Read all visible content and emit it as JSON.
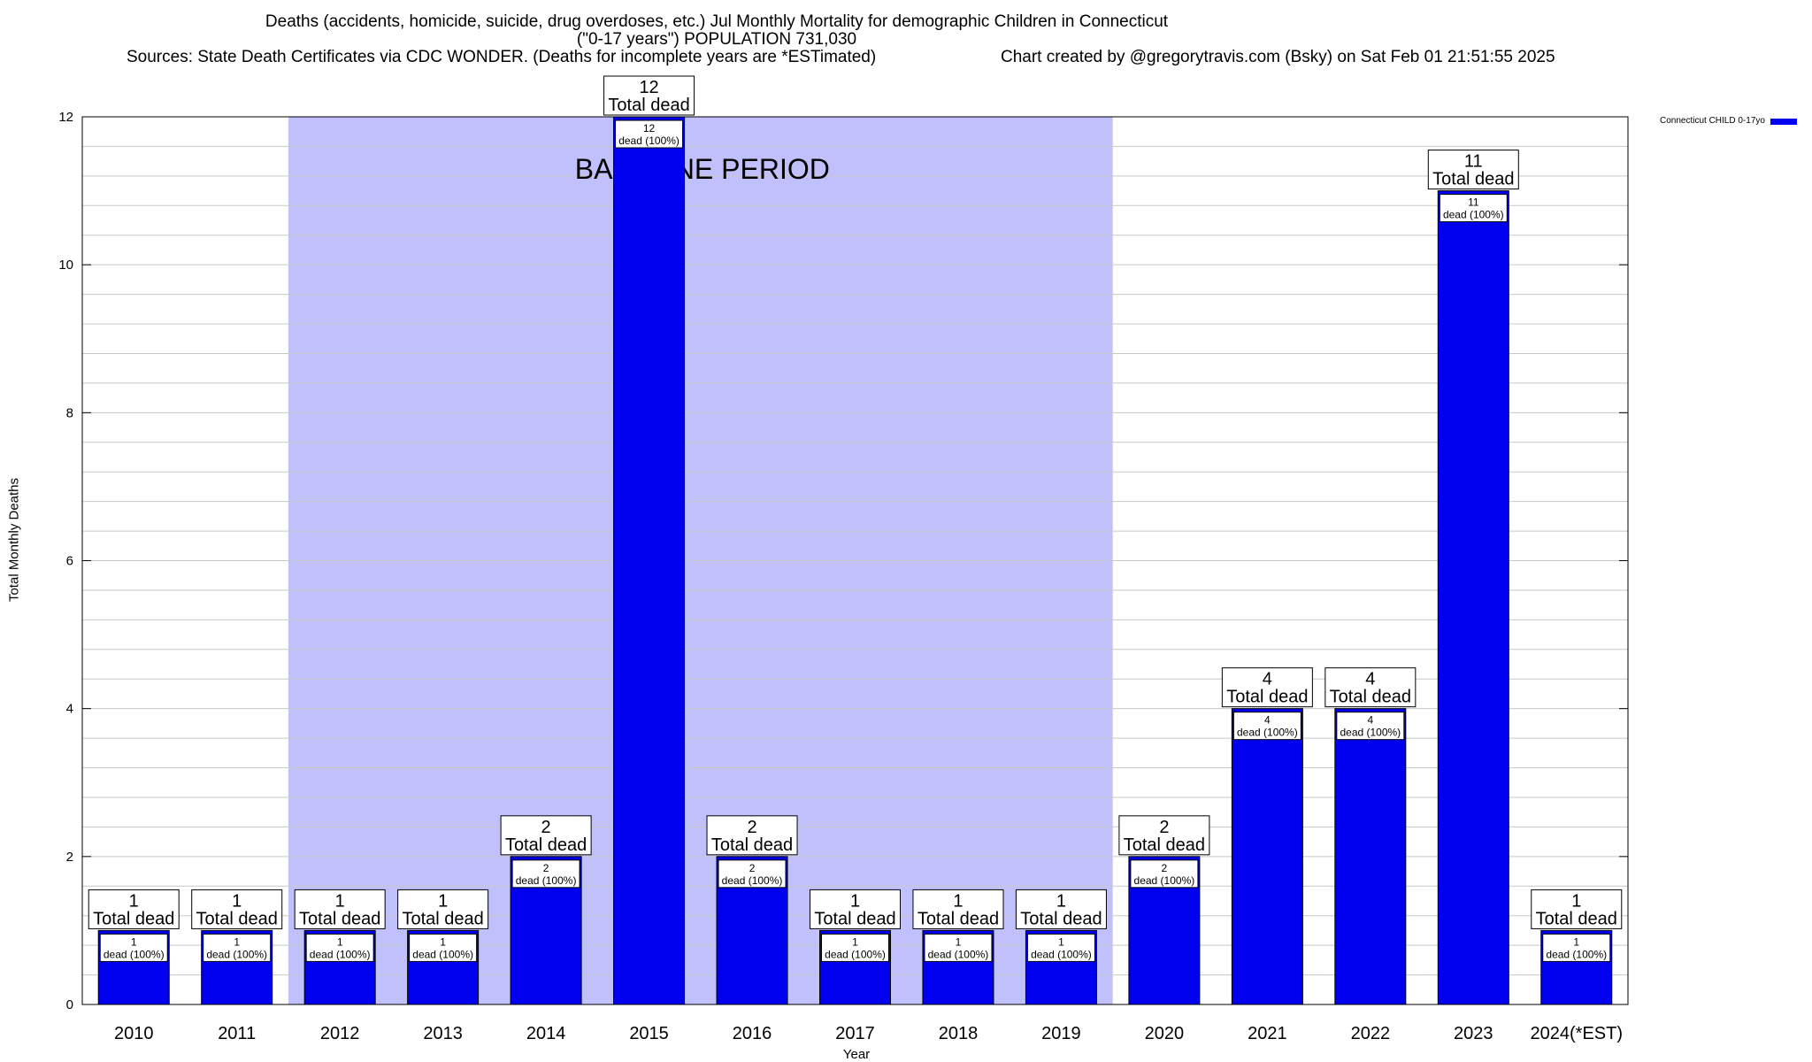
{
  "chart_data": {
    "type": "bar",
    "title": "Deaths (accidents, homicide, suicide, drug overdoses, etc.) Jul Monthly Mortality for demographic Children in Connecticut",
    "subtitle": "(\"0-17 years\") POPULATION 731,030",
    "sources": "Sources: State Death Certificates via CDC WONDER. (Deaths for incomplete years are *ESTimated)",
    "credit": "Chart created by @gregorytravis.com (Bsky) on Sat Feb 01 21:51:55 2025",
    "xlabel": "Year",
    "ylabel": "Total Monthly Deaths",
    "ylim": [
      0,
      12
    ],
    "yticks": [
      0,
      2,
      4,
      6,
      8,
      10,
      12
    ],
    "grid": true,
    "legend_position": "top-right",
    "categories": [
      "2010",
      "2011",
      "2012",
      "2013",
      "2014",
      "2015",
      "2016",
      "2017",
      "2018",
      "2019",
      "2020",
      "2021",
      "2022",
      "2023",
      "2024(*EST)"
    ],
    "series": [
      {
        "name": "Connecticut CHILD 0-17yo",
        "color": "#0000ee",
        "values": [
          1,
          1,
          1,
          1,
          2,
          12,
          2,
          1,
          1,
          1,
          2,
          4,
          4,
          11,
          1
        ]
      }
    ],
    "total_label_suffix": "Total dead",
    "segment_label_suffix": "dead (100%)",
    "baseline": {
      "label": "BASELINE PERIOD",
      "start": "2012",
      "end": "2019",
      "color": "#c0c0fc"
    }
  }
}
